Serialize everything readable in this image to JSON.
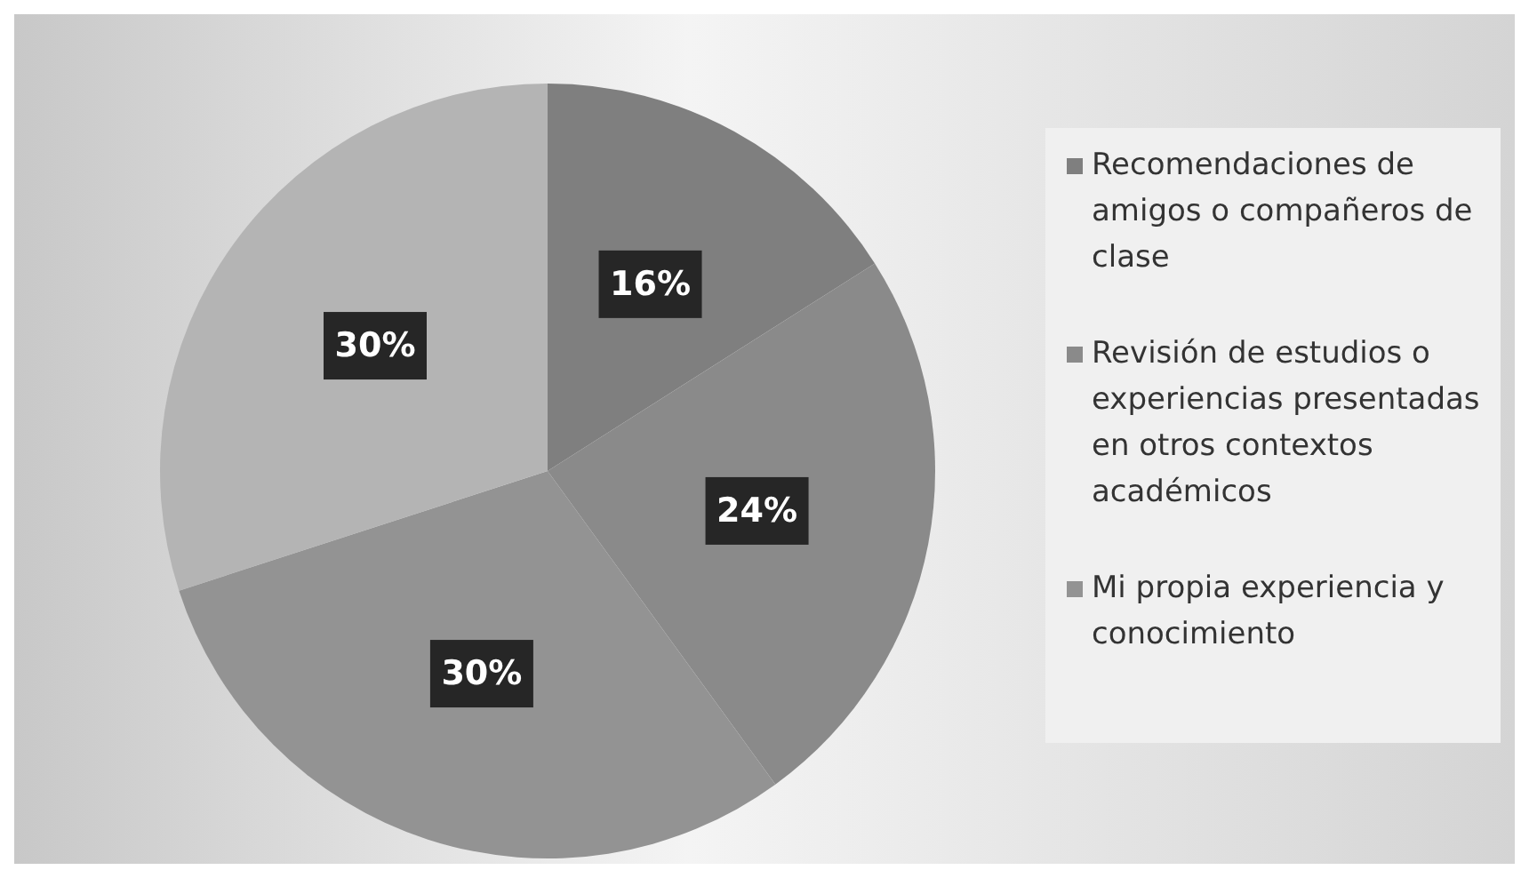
{
  "chart_data": {
    "type": "pie",
    "categories": [
      "Recomendaciones de amigos o compañeros de clase",
      "Revisión de estudios o experiencias presentadas en otros contextos académicos",
      "Mi propia experiencia y conocimiento",
      null
    ],
    "values": [
      16,
      24,
      30,
      30
    ],
    "colors": [
      "#7f7f7f",
      "#8a8a8a",
      "#939393",
      "#b4b4b4"
    ],
    "value_labels": [
      "16%",
      "24%",
      "30%",
      "30%"
    ],
    "legend": "right"
  }
}
